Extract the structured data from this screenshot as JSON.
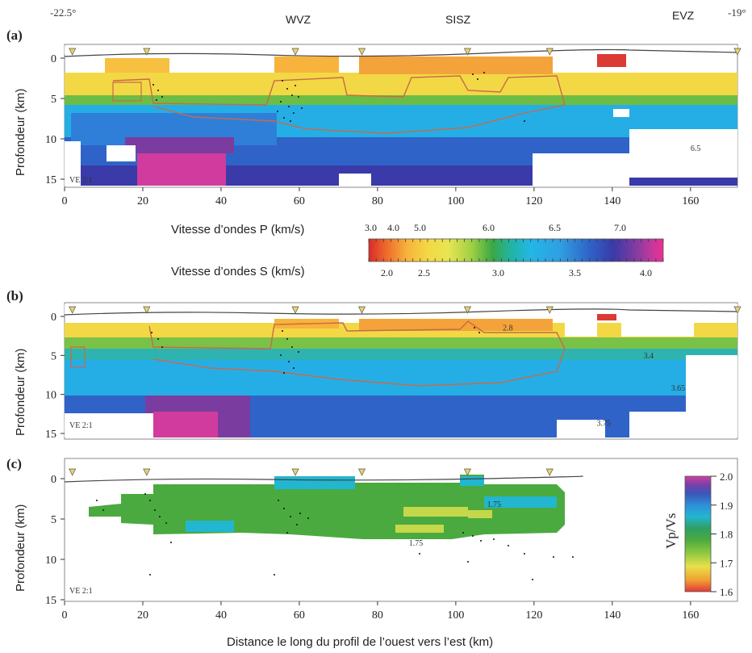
{
  "figure": {
    "top_labels": {
      "left_lon": "-22.5°",
      "wvz": "WVZ",
      "sisz": "SISZ",
      "evz": "EVZ",
      "right_lon": "-19°"
    },
    "x_axis_label": "Distance le long du profil de l’ouest vers l’est (km)",
    "colors": {
      "p_scale": [
        "#d92b2b",
        "#ee6a2c",
        "#f7b33b",
        "#f3d845",
        "#e8e552",
        "#9fcf44",
        "#3aa845",
        "#22b3a0",
        "#23b6e6",
        "#2f9fe2",
        "#2f63c8",
        "#3a3aa8",
        "#7b3ca0",
        "#c2399e",
        "#ef2d94"
      ],
      "ratio_scale": [
        "#e0373a",
        "#f0a030",
        "#e8e04a",
        "#98cc42",
        "#4aaa3f",
        "#2f9f64",
        "#22b6d0",
        "#2f8fd8",
        "#3a56b8",
        "#7a40a8",
        "#d240a0"
      ]
    }
  },
  "chart_data": [
    {
      "panel": "(a)",
      "type": "heatmap",
      "title": "",
      "xlabel": "",
      "ylabel": "Profondeur (km)",
      "xlim": [
        0,
        172
      ],
      "ylim": [
        15,
        -2
      ],
      "x_ticks": [
        0,
        20,
        40,
        60,
        80,
        100,
        120,
        140,
        160
      ],
      "y_ticks": [
        0,
        5,
        10,
        15
      ],
      "annotation": "VE 2:1",
      "stations_km": [
        2,
        21,
        59,
        76,
        103,
        124,
        172
      ],
      "contour_labels": [
        {
          "x": 160,
          "y": 11.5,
          "text": "6.5"
        }
      ],
      "colorbar": {
        "label_p": "Vitesse d’ondes P (km/s)",
        "label_s": "Vitesse d’ondes S (km/s)",
        "p_ticks": [
          "3.0",
          "4.0",
          "5.0",
          "6.0",
          "6.5",
          "7.0"
        ],
        "s_ticks": [
          "2.0",
          "2.5",
          "3.0",
          "3.5",
          "4.0"
        ]
      }
    },
    {
      "panel": "(b)",
      "type": "heatmap",
      "title": "",
      "xlabel": "",
      "ylabel": "Profondeur (km)",
      "xlim": [
        0,
        172
      ],
      "ylim": [
        15,
        -2
      ],
      "x_ticks": [],
      "y_ticks": [
        0,
        5,
        10,
        15
      ],
      "annotation": "VE 2:1",
      "stations_km": [
        2,
        21,
        59,
        76,
        103,
        124,
        172
      ],
      "contour_labels": [
        {
          "x": 112,
          "y": 1.8,
          "text": "2.8"
        },
        {
          "x": 148,
          "y": 5.4,
          "text": "3.4"
        },
        {
          "x": 155,
          "y": 9.5,
          "text": "3.65"
        },
        {
          "x": 136,
          "y": 14,
          "text": "3.75"
        }
      ]
    },
    {
      "panel": "(c)",
      "type": "heatmap",
      "title": "",
      "xlabel": "Distance le long du profil de l’ouest vers l’est (km)",
      "ylabel": "Profondeur (km)",
      "xlim": [
        0,
        172
      ],
      "ylim": [
        15,
        -2
      ],
      "x_ticks": [
        0,
        20,
        40,
        60,
        80,
        100,
        120,
        140,
        160
      ],
      "y_ticks": [
        0,
        5,
        10,
        15
      ],
      "annotation": "VE 2:1",
      "stations_km": [
        2,
        21,
        59,
        76,
        103,
        124
      ],
      "contour_labels": [
        {
          "x": 108,
          "y": 3.5,
          "text": "1.75"
        },
        {
          "x": 88,
          "y": 8.3,
          "text": "1.75"
        }
      ],
      "colorbar": {
        "label": "Vp/Vs",
        "ticks": [
          1.6,
          1.7,
          1.8,
          1.9,
          2.0
        ],
        "range": [
          1.6,
          2.0
        ]
      }
    }
  ]
}
